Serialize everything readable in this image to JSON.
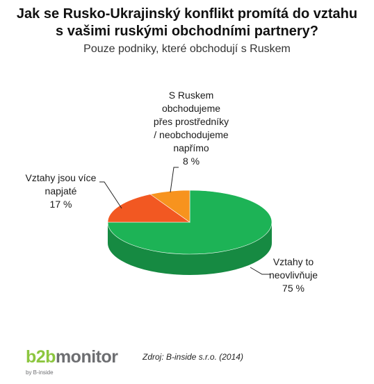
{
  "title_line1": "Jak se Rusko-Ukrajinský konflikt promítá do vztahu",
  "title_line2": "s vašimi ruskými obchodními partnery?",
  "subtitle": "Pouze podniky, které obchodují s Ruskem",
  "chart_data": {
    "type": "pie",
    "title": "Jak se Rusko-Ukrajinský konflikt promítá do vztahu s vašimi ruskými obchodními partnery?",
    "subtitle": "Pouze podniky, které obchodují s Ruskem",
    "slices": [
      {
        "label": "Vztahy to neovlivňuje",
        "value": 75,
        "value_label": "75 %",
        "color": "#1db356",
        "side_color": "#168a42"
      },
      {
        "label": "Vztahy jsou více napjaté",
        "value": 17,
        "value_label": "17 %",
        "color": "#f25822",
        "side_color": "#b8431a"
      },
      {
        "label": "S Ruskem obchodujeme přes prostředníky / neobchodujeme napřímo",
        "value": 8,
        "value_label": "8 %",
        "color": "#f7931e",
        "side_color": "#bd7017"
      }
    ],
    "label_lines": {
      "s0": [
        "Vztahy to",
        "neovlivňuje"
      ],
      "s1": [
        "Vztahy jsou více",
        "napjaté"
      ],
      "s2": [
        "S Ruskem",
        "obchodujeme",
        "přes prostředníky",
        "/ neobchodujeme",
        "napřímo"
      ]
    },
    "style": "3d"
  },
  "brand": {
    "name_a": "b2b",
    "name_b": "monitor",
    "by": "by B-inside"
  },
  "source": "Zdroj: B-inside s.r.o. (2014)"
}
